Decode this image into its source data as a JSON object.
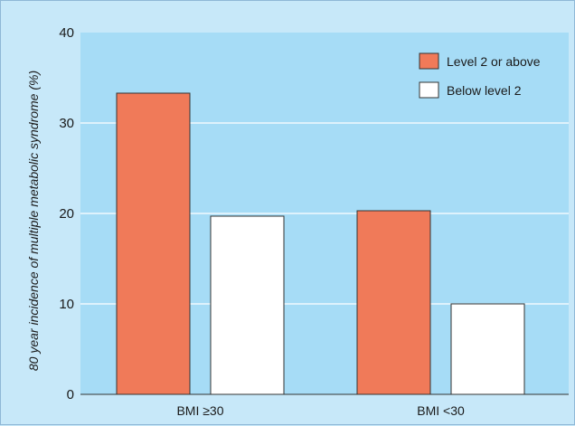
{
  "chart_data": {
    "type": "bar",
    "title": "",
    "xlabel": "",
    "ylabel": "80 year incidence of multiple metabolic syndrome (%)",
    "ylim": [
      0,
      40
    ],
    "yticks": [
      "0",
      "10",
      "20",
      "30",
      "40"
    ],
    "categories": [
      "BMI ≥30",
      "BMI <30"
    ],
    "series": [
      {
        "name": "Level 2 or above",
        "color": "#f07a59",
        "values": [
          33.3,
          20.3
        ]
      },
      {
        "name": "Below level 2",
        "color": "#ffffff",
        "values": [
          19.7,
          10.0
        ]
      }
    ],
    "grid": true,
    "legend_position": "top-right",
    "colors": {
      "plot_background": "#a6dcf6",
      "frame_background": "#c7e8f9",
      "gridline": "#ffffff"
    }
  }
}
